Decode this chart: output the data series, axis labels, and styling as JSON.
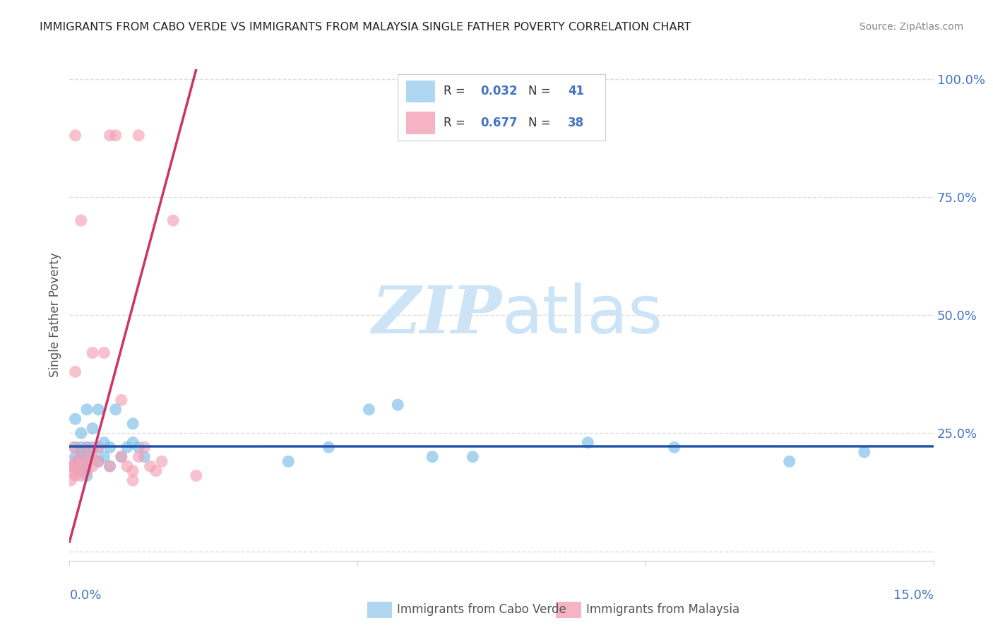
{
  "title": "IMMIGRANTS FROM CABO VERDE VS IMMIGRANTS FROM MALAYSIA SINGLE FATHER POVERTY CORRELATION CHART",
  "source": "Source: ZipAtlas.com",
  "ylabel": "Single Father Poverty",
  "y_ticks": [
    0.0,
    0.25,
    0.5,
    0.75,
    1.0
  ],
  "y_tick_labels": [
    "",
    "25.0%",
    "50.0%",
    "75.0%",
    "100.0%"
  ],
  "x_range": [
    0.0,
    0.15
  ],
  "y_range": [
    -0.02,
    1.02
  ],
  "cabo_verde_color": "#7abde8",
  "malaysia_color": "#f4a0b5",
  "cabo_verde_line_color": "#2255aa",
  "malaysia_line_color": "#cc3366",
  "cabo_verde_R": "0.032",
  "cabo_verde_N": "41",
  "malaysia_R": "0.677",
  "malaysia_N": "38",
  "legend_label_1": "Immigrants from Cabo Verde",
  "legend_label_2": "Immigrants from Malaysia",
  "watermark_zip": "ZIP",
  "watermark_atlas": "atlas",
  "watermark_color": "#cce4f5",
  "background_color": "#ffffff",
  "grid_color": "#dddddd",
  "axis_label_color": "#4472c4",
  "title_color": "#222222",
  "r_label_color": "#4472c4",
  "source_color": "#888888",
  "ylabel_color": "#555555",
  "legend_text_dark": "#333333",
  "cabo_verde_x": [
    0.0005,
    0.001,
    0.001,
    0.001,
    0.0015,
    0.002,
    0.002,
    0.002,
    0.002,
    0.003,
    0.003,
    0.003,
    0.003,
    0.003,
    0.004,
    0.004,
    0.004,
    0.005,
    0.005,
    0.005,
    0.006,
    0.006,
    0.007,
    0.007,
    0.008,
    0.009,
    0.01,
    0.011,
    0.011,
    0.012,
    0.013,
    0.038,
    0.045,
    0.052,
    0.057,
    0.063,
    0.07,
    0.09,
    0.105,
    0.125,
    0.138
  ],
  "cabo_verde_y": [
    0.18,
    0.2,
    0.22,
    0.28,
    0.19,
    0.17,
    0.2,
    0.22,
    0.25,
    0.16,
    0.18,
    0.2,
    0.22,
    0.3,
    0.2,
    0.22,
    0.26,
    0.19,
    0.22,
    0.3,
    0.2,
    0.23,
    0.18,
    0.22,
    0.3,
    0.2,
    0.22,
    0.23,
    0.27,
    0.22,
    0.2,
    0.19,
    0.22,
    0.3,
    0.31,
    0.2,
    0.2,
    0.23,
    0.22,
    0.19,
    0.21
  ],
  "malaysia_x": [
    0.0002,
    0.0003,
    0.0005,
    0.0008,
    0.001,
    0.001,
    0.001,
    0.001,
    0.0015,
    0.002,
    0.002,
    0.002,
    0.002,
    0.003,
    0.003,
    0.003,
    0.004,
    0.004,
    0.004,
    0.005,
    0.005,
    0.006,
    0.007,
    0.007,
    0.008,
    0.009,
    0.009,
    0.01,
    0.011,
    0.011,
    0.012,
    0.012,
    0.013,
    0.014,
    0.015,
    0.016,
    0.018,
    0.022
  ],
  "malaysia_y": [
    0.15,
    0.17,
    0.18,
    0.22,
    0.16,
    0.19,
    0.38,
    0.88,
    0.17,
    0.16,
    0.18,
    0.2,
    0.7,
    0.17,
    0.19,
    0.22,
    0.18,
    0.2,
    0.42,
    0.19,
    0.22,
    0.42,
    0.18,
    0.88,
    0.88,
    0.32,
    0.2,
    0.18,
    0.15,
    0.17,
    0.88,
    0.2,
    0.22,
    0.18,
    0.17,
    0.19,
    0.7,
    0.16
  ]
}
